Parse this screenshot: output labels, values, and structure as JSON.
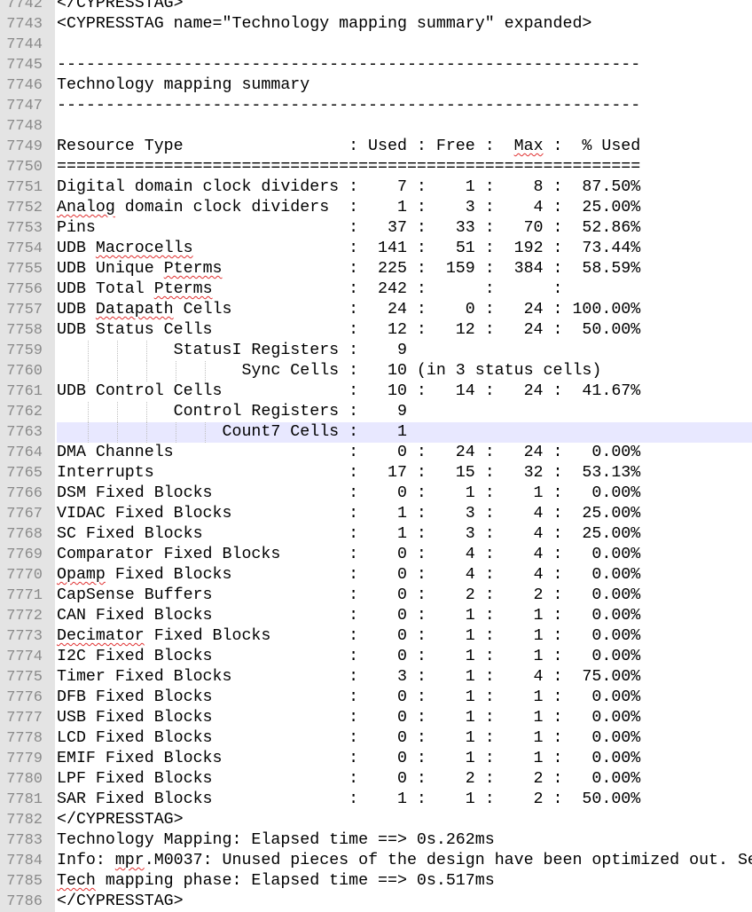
{
  "editor": {
    "current_line": 7763,
    "spellcheck_words": [
      "Analog",
      "Macrocells",
      "Pterms",
      "Datapath",
      "Max",
      "Opamp",
      "Decimator",
      "mpr",
      "Tech"
    ],
    "lines": [
      {
        "n": "7742",
        "t": "</CYPRESSTAG>"
      },
      {
        "n": "7743",
        "t": "<CYPRESSTAG name=\"Technology mapping summary\" expanded>"
      },
      {
        "n": "7744",
        "t": ""
      },
      {
        "n": "7745",
        "t": "------------------------------------------------------------"
      },
      {
        "n": "7746",
        "t": "Technology mapping summary"
      },
      {
        "n": "7747",
        "t": "------------------------------------------------------------"
      },
      {
        "n": "7748",
        "t": ""
      },
      {
        "n": "7749",
        "t": "Resource Type                 : Used : Free :  Max :  % Used"
      },
      {
        "n": "7750",
        "t": "============================================================"
      },
      {
        "n": "7751",
        "t": "Digital domain clock dividers :    7 :    1 :    8 :  87.50%"
      },
      {
        "n": "7752",
        "t": "Analog domain clock dividers  :    1 :    3 :    4 :  25.00%"
      },
      {
        "n": "7753",
        "t": "Pins                          :   37 :   33 :   70 :  52.86%"
      },
      {
        "n": "7754",
        "t": "UDB Macrocells                :  141 :   51 :  192 :  73.44%"
      },
      {
        "n": "7755",
        "t": "UDB Unique Pterms             :  225 :  159 :  384 :  58.59%"
      },
      {
        "n": "7756",
        "t": "UDB Total Pterms              :  242 :      :      :"
      },
      {
        "n": "7757",
        "t": "UDB Datapath Cells            :   24 :    0 :   24 : 100.00%"
      },
      {
        "n": "7758",
        "t": "UDB Status Cells              :   12 :   12 :   24 :  50.00%"
      },
      {
        "n": "7759",
        "t": "            StatusI Registers :    9",
        "g": 3
      },
      {
        "n": "7760",
        "t": "                   Sync Cells :   10 (in 3 status cells)",
        "g": 5
      },
      {
        "n": "7761",
        "t": "UDB Control Cells             :   10 :   14 :   24 :  41.67%"
      },
      {
        "n": "7762",
        "t": "            Control Registers :    9",
        "g": 3
      },
      {
        "n": "7763",
        "t": "                 Count7 Cells :    1",
        "g": 5
      },
      {
        "n": "7764",
        "t": "DMA Channels                  :    0 :   24 :   24 :   0.00%"
      },
      {
        "n": "7765",
        "t": "Interrupts                    :   17 :   15 :   32 :  53.13%"
      },
      {
        "n": "7766",
        "t": "DSM Fixed Blocks              :    0 :    1 :    1 :   0.00%"
      },
      {
        "n": "7767",
        "t": "VIDAC Fixed Blocks            :    1 :    3 :    4 :  25.00%"
      },
      {
        "n": "7768",
        "t": "SC Fixed Blocks               :    1 :    3 :    4 :  25.00%"
      },
      {
        "n": "7769",
        "t": "Comparator Fixed Blocks       :    0 :    4 :    4 :   0.00%"
      },
      {
        "n": "7770",
        "t": "Opamp Fixed Blocks            :    0 :    4 :    4 :   0.00%"
      },
      {
        "n": "7771",
        "t": "CapSense Buffers              :    0 :    2 :    2 :   0.00%"
      },
      {
        "n": "7772",
        "t": "CAN Fixed Blocks              :    0 :    1 :    1 :   0.00%"
      },
      {
        "n": "7773",
        "t": "Decimator Fixed Blocks        :    0 :    1 :    1 :   0.00%"
      },
      {
        "n": "7774",
        "t": "I2C Fixed Blocks              :    0 :    1 :    1 :   0.00%"
      },
      {
        "n": "7775",
        "t": "Timer Fixed Blocks            :    3 :    1 :    4 :  75.00%"
      },
      {
        "n": "7776",
        "t": "DFB Fixed Blocks              :    0 :    1 :    1 :   0.00%"
      },
      {
        "n": "7777",
        "t": "USB Fixed Blocks              :    0 :    1 :    1 :   0.00%"
      },
      {
        "n": "7778",
        "t": "LCD Fixed Blocks              :    0 :    1 :    1 :   0.00%"
      },
      {
        "n": "7779",
        "t": "EMIF Fixed Blocks             :    0 :    1 :    1 :   0.00%"
      },
      {
        "n": "7780",
        "t": "LPF Fixed Blocks              :    0 :    2 :    2 :   0.00%"
      },
      {
        "n": "7781",
        "t": "SAR Fixed Blocks              :    1 :    1 :    2 :  50.00%"
      },
      {
        "n": "7782",
        "t": "</CYPRESSTAG>"
      },
      {
        "n": "7783",
        "t": "Technology Mapping: Elapsed time ==> 0s.262ms"
      },
      {
        "n": "7784",
        "t": "Info: mpr.M0037: Unused pieces of the design have been optimized out. Se"
      },
      {
        "n": "7785",
        "t": "Tech mapping phase: Elapsed time ==> 0s.517ms"
      },
      {
        "n": "7786",
        "t": "</CYPRESSTAG>"
      }
    ]
  }
}
